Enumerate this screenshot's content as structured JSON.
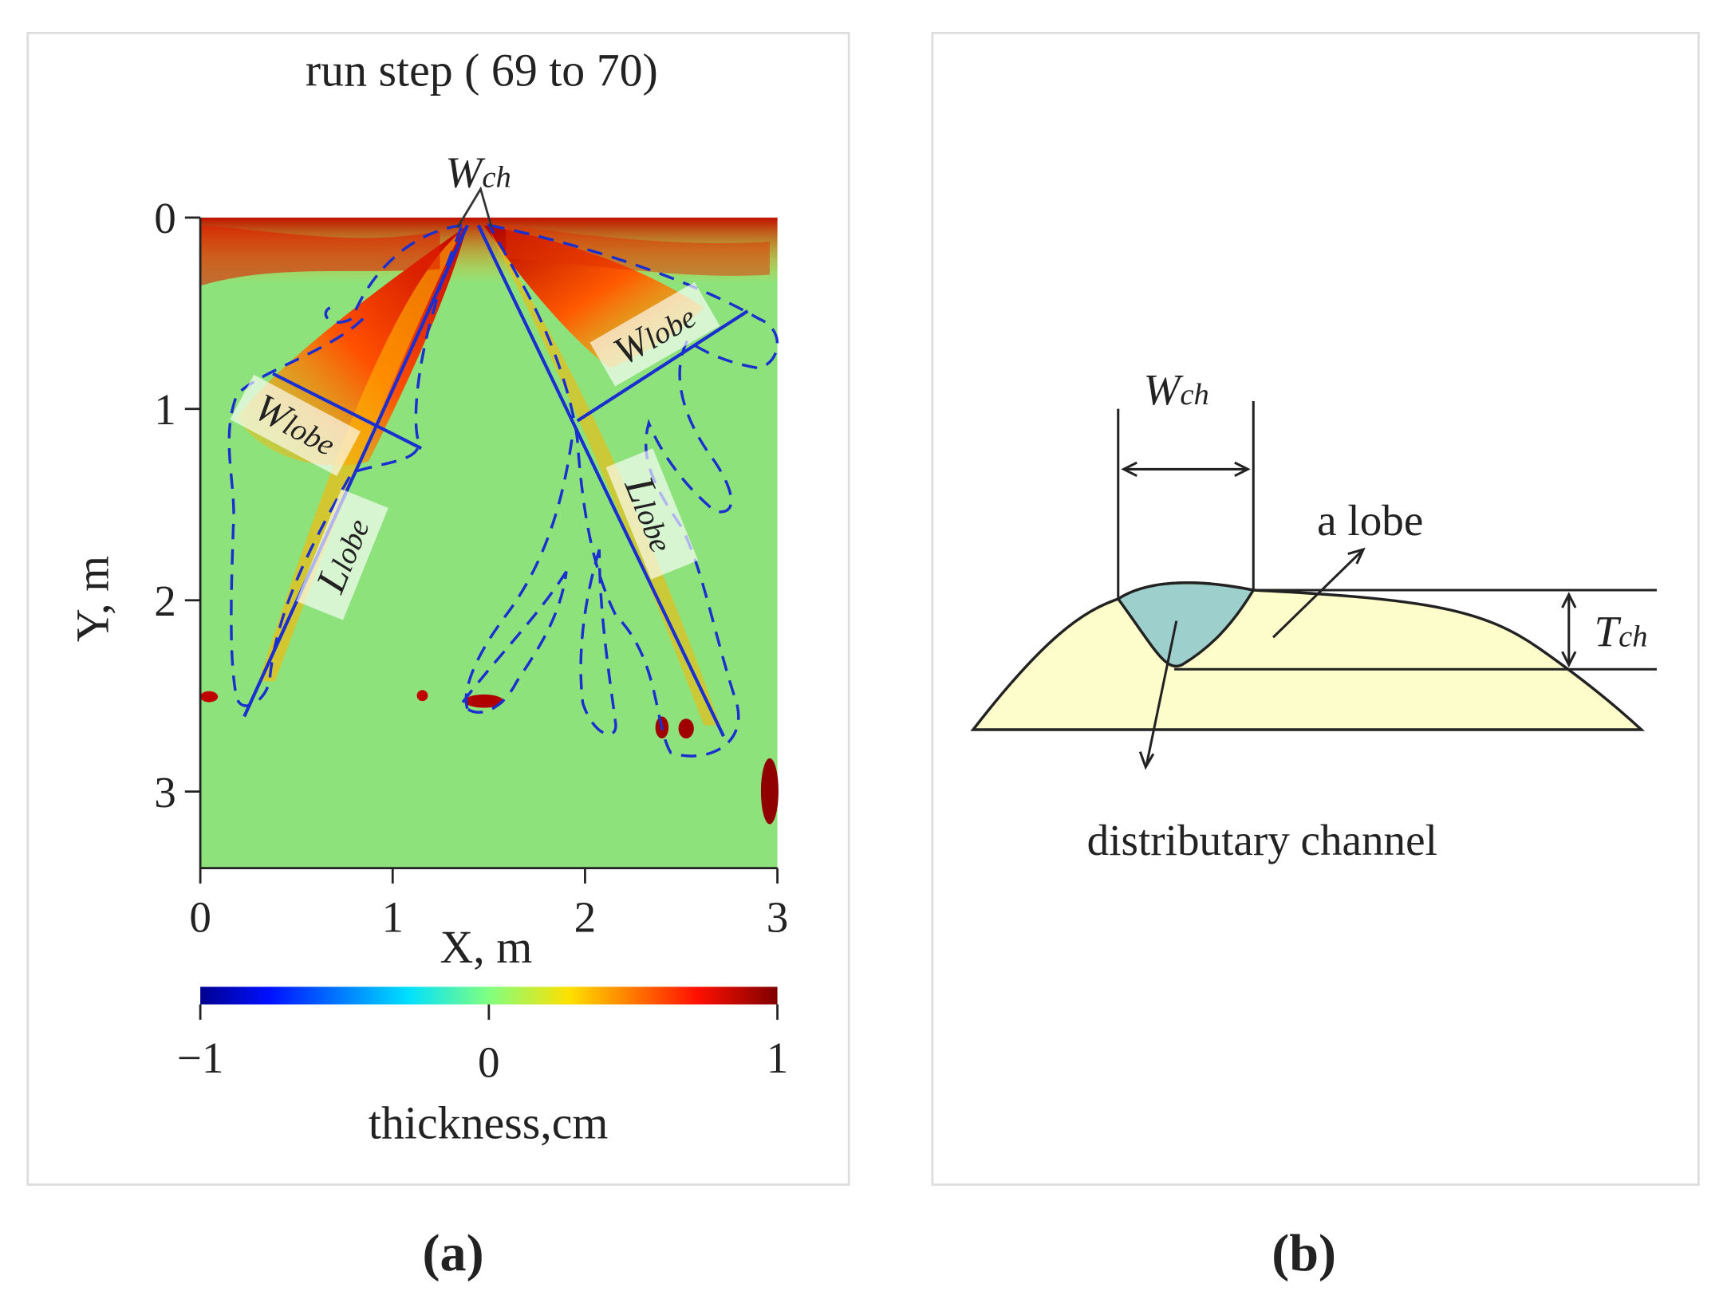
{
  "chart_data": {
    "type": "heatmap",
    "title": "run step ( 69 to 70)",
    "x_label": "X, m",
    "y_label": "Y, m",
    "xlim": [
      0,
      3
    ],
    "xticks": [
      0,
      1,
      2,
      3
    ],
    "ylim": [
      0,
      3.4
    ],
    "yticks": [
      0,
      1,
      2,
      3
    ],
    "y_inverted": true,
    "colorbar": {
      "label": "thickness,cm",
      "lim": [
        -1,
        1
      ],
      "ticks": [
        {
          "value": -1,
          "label": "−1"
        },
        0,
        1
      ]
    },
    "annotations": [
      {
        "symbol": "W",
        "subscript": "ch"
      },
      {
        "symbol": "W",
        "subscript": "lobe"
      },
      {
        "symbol": "W",
        "subscript": "lobe"
      },
      {
        "symbol": "L",
        "subscript": "lobe"
      },
      {
        "symbol": "L",
        "subscript": "lobe"
      }
    ]
  },
  "diagram": {
    "channel_width": {
      "symbol": "W",
      "subscript": "ch"
    },
    "lobe": "a lobe",
    "channel_thickness": {
      "symbol": "T",
      "subscript": "ch"
    },
    "channel": "distributary channel"
  },
  "captions": [
    "(a)",
    "(b)"
  ]
}
